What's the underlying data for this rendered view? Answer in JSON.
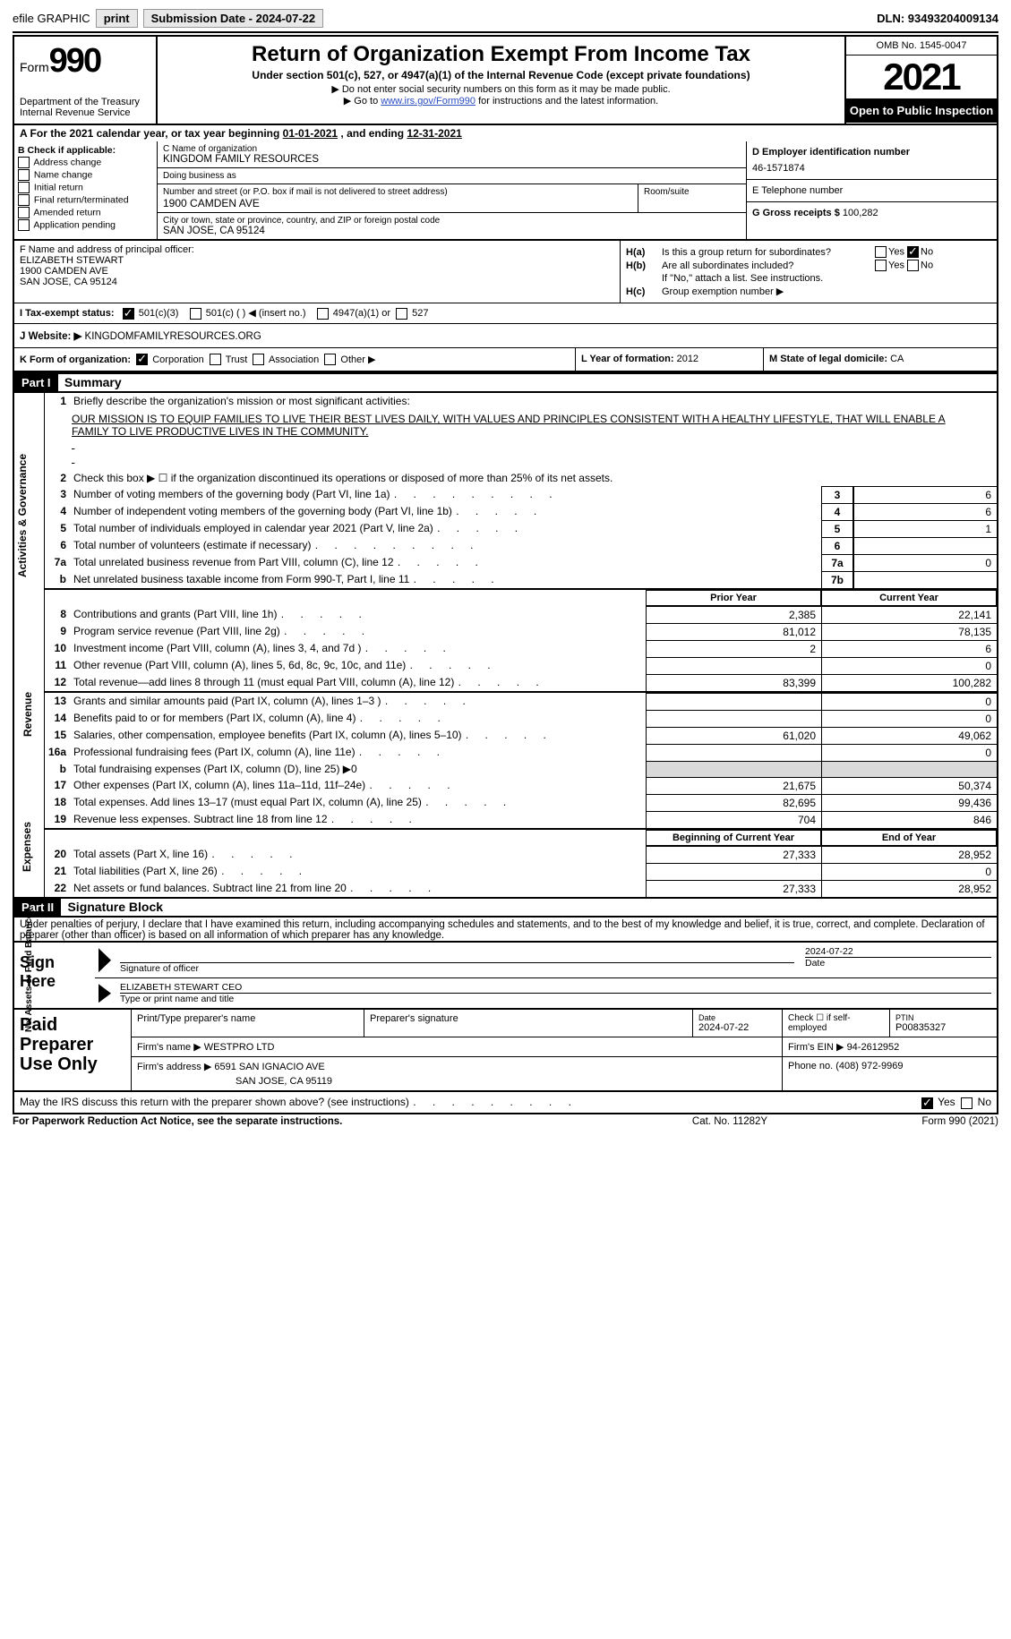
{
  "topbar": {
    "efile": "efile GRAPHIC",
    "print": "print",
    "submission": "Submission Date - 2024-07-22",
    "dln": "DLN: 93493204009134"
  },
  "header": {
    "form": "Form",
    "number": "990",
    "dept": "Department of the Treasury Internal Revenue Service",
    "title": "Return of Organization Exempt From Income Tax",
    "sub": "Under section 501(c), 527, or 4947(a)(1) of the Internal Revenue Code (except private foundations)",
    "note1": "▶ Do not enter social security numbers on this form as it may be made public.",
    "note2_pre": "▶ Go to ",
    "note2_link": "www.irs.gov/Form990",
    "note2_suf": " for instructions and the latest information.",
    "omb": "OMB No. 1545-0047",
    "year": "2021",
    "inspect": "Open to Public Inspection"
  },
  "rowA": {
    "text": "A  For the 2021 calendar year, or tax year beginning ",
    "begin": "01-01-2021",
    "mid": "  , and ending ",
    "end": "12-31-2021"
  },
  "secB": {
    "left_title": "B Check if applicable:",
    "opts": [
      "Address change",
      "Name change",
      "Initial return",
      "Final return/terminated",
      "Amended return",
      "Application pending"
    ],
    "c_lab": "C Name of organization",
    "c_name": "KINGDOM FAMILY RESOURCES",
    "dba_lab": "Doing business as",
    "dba": "",
    "addr_lab": "Number and street (or P.O. box if mail is not delivered to street address)",
    "addr": "1900 CAMDEN AVE",
    "room_lab": "Room/suite",
    "city_lab": "City or town, state or province, country, and ZIP or foreign postal code",
    "city": "SAN JOSE, CA  95124",
    "d_lab": "D Employer identification number",
    "d_ein": "46-1571874",
    "e_lab": "E Telephone number",
    "e_tel": "",
    "g_lab": "G Gross receipts $",
    "g_val": "100,282"
  },
  "secF": {
    "f_lab": "F  Name and address of principal officer:",
    "name": "ELIZABETH STEWART",
    "addr": "1900 CAMDEN AVE",
    "city": "SAN JOSE, CA  95124",
    "ha": "Is this a group return for subordinates?",
    "hb": "Are all subordinates included?",
    "hb_note": "If \"No,\" attach a list. See instructions.",
    "hc": "Group exemption number ▶"
  },
  "rowI": {
    "lab": "I   Tax-exempt status:",
    "o1": "501(c)(3)",
    "o2": "501(c) (  ) ◀ (insert no.)",
    "o3": "4947(a)(1) or",
    "o4": "527"
  },
  "rowJ": {
    "lab": "J   Website: ▶  ",
    "val": "KINGDOMFAMILYRESOURCES.ORG"
  },
  "rowK": {
    "lab": "K Form of organization:",
    "o1": "Corporation",
    "o2": "Trust",
    "o3": "Association",
    "o4": "Other ▶",
    "l_lab": "L Year of formation:",
    "l_val": "2012",
    "m_lab": "M State of legal domicile:",
    "m_val": "CA"
  },
  "p1": {
    "title": "Summary",
    "side1": "Activities & Governance",
    "side2": "Revenue",
    "side3": "Expenses",
    "side4": "Net Assets or Fund Balances",
    "l1_lab": "Briefly describe the organization's mission or most significant activities:",
    "l1_txt": "OUR MISSION IS TO EQUIP FAMILIES TO LIVE THEIR BEST LIVES DAILY, WITH VALUES AND PRINCIPLES CONSISTENT WITH A HEALTHY LIFESTYLE, THAT WILL ENABLE A FAMILY TO LIVE PRODUCTIVE LIVES IN THE COMMUNITY.",
    "l2": "Check this box ▶ ☐  if the organization discontinued its operations or disposed of more than 25% of its net assets.",
    "l3": {
      "t": "Number of voting members of the governing body (Part VI, line 1a)",
      "b": "3",
      "v": "6"
    },
    "l4": {
      "t": "Number of independent voting members of the governing body (Part VI, line 1b)",
      "b": "4",
      "v": "6"
    },
    "l5": {
      "t": "Total number of individuals employed in calendar year 2021 (Part V, line 2a)",
      "b": "5",
      "v": "1"
    },
    "l6": {
      "t": "Total number of volunteers (estimate if necessary)",
      "b": "6",
      "v": ""
    },
    "l7a": {
      "t": "Total unrelated business revenue from Part VIII, column (C), line 12",
      "b": "7a",
      "v": "0"
    },
    "l7b": {
      "t": "Net unrelated business taxable income from Form 990-T, Part I, line 11",
      "b": "7b",
      "v": ""
    },
    "th_prior": "Prior Year",
    "th_current": "Current Year",
    "th_boy": "Beginning of Current Year",
    "th_eoy": "End of Year",
    "rev": [
      {
        "n": "8",
        "t": "Contributions and grants (Part VIII, line 1h)",
        "p": "2,385",
        "c": "22,141"
      },
      {
        "n": "9",
        "t": "Program service revenue (Part VIII, line 2g)",
        "p": "81,012",
        "c": "78,135"
      },
      {
        "n": "10",
        "t": "Investment income (Part VIII, column (A), lines 3, 4, and 7d )",
        "p": "2",
        "c": "6"
      },
      {
        "n": "11",
        "t": "Other revenue (Part VIII, column (A), lines 5, 6d, 8c, 9c, 10c, and 11e)",
        "p": "",
        "c": "0"
      },
      {
        "n": "12",
        "t": "Total revenue—add lines 8 through 11 (must equal Part VIII, column (A), line 12)",
        "p": "83,399",
        "c": "100,282"
      }
    ],
    "exp": [
      {
        "n": "13",
        "t": "Grants and similar amounts paid (Part IX, column (A), lines 1–3 )",
        "p": "",
        "c": "0"
      },
      {
        "n": "14",
        "t": "Benefits paid to or for members (Part IX, column (A), line 4)",
        "p": "",
        "c": "0"
      },
      {
        "n": "15",
        "t": "Salaries, other compensation, employee benefits (Part IX, column (A), lines 5–10)",
        "p": "61,020",
        "c": "49,062"
      },
      {
        "n": "16a",
        "t": "Professional fundraising fees (Part IX, column (A), line 11e)",
        "p": "",
        "c": "0"
      },
      {
        "n": "b",
        "t": "Total fundraising expenses (Part IX, column (D), line 25) ▶0",
        "p": "__shade__",
        "c": "__shade__",
        "noteline": true
      },
      {
        "n": "17",
        "t": "Other expenses (Part IX, column (A), lines 11a–11d, 11f–24e)",
        "p": "21,675",
        "c": "50,374"
      },
      {
        "n": "18",
        "t": "Total expenses. Add lines 13–17 (must equal Part IX, column (A), line 25)",
        "p": "82,695",
        "c": "99,436"
      },
      {
        "n": "19",
        "t": "Revenue less expenses. Subtract line 18 from line 12",
        "p": "704",
        "c": "846"
      }
    ],
    "net": [
      {
        "n": "20",
        "t": "Total assets (Part X, line 16)",
        "p": "27,333",
        "c": "28,952"
      },
      {
        "n": "21",
        "t": "Total liabilities (Part X, line 26)",
        "p": "",
        "c": "0"
      },
      {
        "n": "22",
        "t": "Net assets or fund balances. Subtract line 21 from line 20",
        "p": "27,333",
        "c": "28,952"
      }
    ]
  },
  "p2": {
    "title": "Signature Block",
    "decl": "Under penalties of perjury, I declare that I have examined this return, including accompanying schedules and statements, and to the best of my knowledge and belief, it is true, correct, and complete. Declaration of preparer (other than officer) is based on all information of which preparer has any knowledge."
  },
  "sign": {
    "h": "Sign Here",
    "s1": "Signature of officer",
    "s2": "Date",
    "date": "2024-07-22",
    "s3": "ELIZABETH STEWART CEO",
    "s4": "Type or print name and title"
  },
  "prep": {
    "h": "Paid Preparer Use Only",
    "c1": "Print/Type preparer's name",
    "c2": "Preparer's signature",
    "c3_l": "Date",
    "c3_v": "2024-07-22",
    "c4": "Check ☐ if self-employed",
    "c5_l": "PTIN",
    "c5_v": "P00835327",
    "firm_l": "Firm's name    ▶",
    "firm_v": "WESTPRO LTD",
    "ein_l": "Firm's EIN ▶",
    "ein_v": "94-2612952",
    "addr_l": "Firm's address ▶",
    "addr_v1": "6591 SAN IGNACIO AVE",
    "addr_v2": "SAN JOSE, CA  95119",
    "ph_l": "Phone no.",
    "ph_v": "(408) 972-9969"
  },
  "foot1": {
    "q": "May the IRS discuss this return with the preparer shown above? (see instructions)",
    "yes": "Yes",
    "no": "No"
  },
  "foot2": {
    "l": "For Paperwork Reduction Act Notice, see the separate instructions.",
    "m": "Cat. No. 11282Y",
    "r": "Form 990 (2021)"
  }
}
